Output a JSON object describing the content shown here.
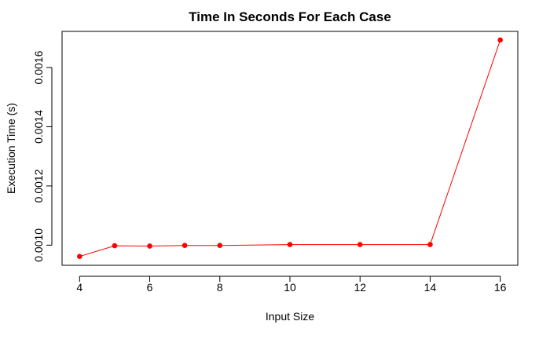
{
  "chart_data": {
    "type": "line",
    "title": "Time In Seconds For Each Case",
    "xlabel": "Input Size",
    "ylabel": "Execution Time (s)",
    "x": [
      4,
      5,
      6,
      7,
      8,
      10,
      12,
      14,
      16
    ],
    "series": [
      {
        "values": [
          0.000962,
          0.000998,
          0.000997,
          0.000999,
          0.000999,
          0.001002,
          0.001002,
          0.001002,
          0.001693
        ],
        "color": "#ff0000"
      }
    ],
    "xticks": [
      4,
      6,
      8,
      10,
      12,
      14,
      16
    ],
    "yticks": [
      0.001,
      0.0012,
      0.0014,
      0.0016
    ],
    "ytick_labels": [
      "0.0010",
      "0.0012",
      "0.0014",
      "0.0016"
    ],
    "xlim": [
      3.5,
      16.5
    ],
    "ylim": [
      0.000932,
      0.001722
    ],
    "grid": false,
    "legend": "none",
    "marker": "filled-circle"
  }
}
